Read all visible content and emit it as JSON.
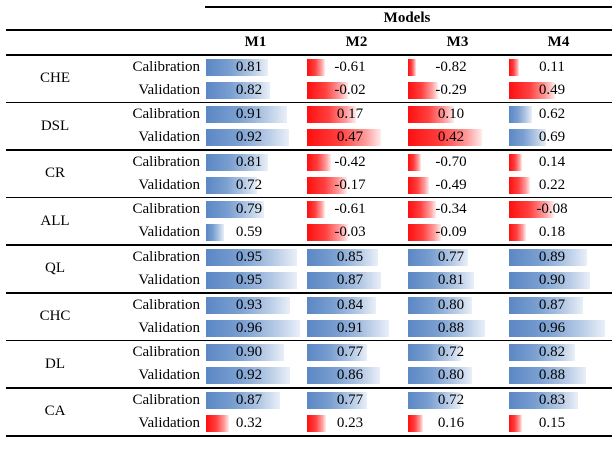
{
  "header": {
    "models_label": "Models",
    "columns": [
      "M1",
      "M2",
      "M3",
      "M4"
    ]
  },
  "colors": {
    "blue_bar": "#5b87c5",
    "red_bar": "#fe0f0f"
  },
  "groups": [
    {
      "metric": "CHE",
      "rows": [
        {
          "series": "Calibration",
          "cells": [
            {
              "v": "0.81",
              "color": "blue",
              "frac": 0.63
            },
            {
              "v": "-0.61",
              "color": "red",
              "frac": 0.18
            },
            {
              "v": "-0.82",
              "color": "red",
              "frac": 0.08
            },
            {
              "v": "0.11",
              "color": "red",
              "frac": 0.1
            }
          ]
        },
        {
          "series": "Validation",
          "cells": [
            {
              "v": "0.82",
              "color": "blue",
              "frac": 0.65
            },
            {
              "v": "-0.02",
              "color": "red",
              "frac": 0.42
            },
            {
              "v": "-0.29",
              "color": "red",
              "frac": 0.31
            },
            {
              "v": "0.49",
              "color": "red",
              "frac": 0.47
            }
          ]
        }
      ]
    },
    {
      "metric": "DSL",
      "rows": [
        {
          "series": "Calibration",
          "cells": [
            {
              "v": "0.91",
              "color": "blue",
              "frac": 0.83
            },
            {
              "v": "0.17",
              "color": "red",
              "frac": 0.5
            },
            {
              "v": "0.10",
              "color": "red",
              "frac": 0.47
            },
            {
              "v": "0.62",
              "color": "blue",
              "frac": 0.23
            }
          ]
        },
        {
          "series": "Validation",
          "cells": [
            {
              "v": "0.92",
              "color": "blue",
              "frac": 0.85
            },
            {
              "v": "0.47",
              "color": "red",
              "frac": 0.76
            },
            {
              "v": "0.42",
              "color": "red",
              "frac": 0.75
            },
            {
              "v": "0.69",
              "color": "blue",
              "frac": 0.38
            }
          ]
        }
      ]
    },
    {
      "metric": "CR",
      "rows": [
        {
          "series": "Calibration",
          "cells": [
            {
              "v": "0.81",
              "color": "blue",
              "frac": 0.63
            },
            {
              "v": "-0.42",
              "color": "red",
              "frac": 0.24
            },
            {
              "v": "-0.70",
              "color": "red",
              "frac": 0.13
            },
            {
              "v": "0.14",
              "color": "red",
              "frac": 0.13
            }
          ]
        },
        {
          "series": "Validation",
          "cells": [
            {
              "v": "0.72",
              "color": "blue",
              "frac": 0.52
            },
            {
              "v": "-0.17",
              "color": "red",
              "frac": 0.41
            },
            {
              "v": "-0.49",
              "color": "red",
              "frac": 0.21
            },
            {
              "v": "0.22",
              "color": "red",
              "frac": 0.21
            }
          ]
        }
      ]
    },
    {
      "metric": "ALL",
      "rows": [
        {
          "series": "Calibration",
          "cells": [
            {
              "v": "0.79",
              "color": "blue",
              "frac": 0.59
            },
            {
              "v": "-0.61",
              "color": "red",
              "frac": 0.18
            },
            {
              "v": "-0.34",
              "color": "red",
              "frac": 0.29
            },
            {
              "v": "-0.08",
              "color": "red",
              "frac": 0.46
            }
          ]
        },
        {
          "series": "Validation",
          "cells": [
            {
              "v": "0.59",
              "color": "blue",
              "frac": 0.18
            },
            {
              "v": "-0.03",
              "color": "red",
              "frac": 0.42
            },
            {
              "v": "-0.09",
              "color": "red",
              "frac": 0.34
            },
            {
              "v": "0.18",
              "color": "red",
              "frac": 0.17
            }
          ]
        }
      ]
    },
    {
      "metric": "QL",
      "rows": [
        {
          "series": "Calibration",
          "cells": [
            {
              "v": "0.95",
              "color": "blue",
              "frac": 0.93
            },
            {
              "v": "0.85",
              "color": "blue",
              "frac": 0.72
            },
            {
              "v": "0.77",
              "color": "blue",
              "frac": 0.61
            },
            {
              "v": "0.89",
              "color": "blue",
              "frac": 0.8
            }
          ]
        },
        {
          "series": "Validation",
          "cells": [
            {
              "v": "0.95",
              "color": "blue",
              "frac": 0.93
            },
            {
              "v": "0.87",
              "color": "blue",
              "frac": 0.75
            },
            {
              "v": "0.81",
              "color": "blue",
              "frac": 0.67
            },
            {
              "v": "0.90",
              "color": "blue",
              "frac": 0.83
            }
          ]
        }
      ]
    },
    {
      "metric": "CHC",
      "rows": [
        {
          "series": "Calibration",
          "cells": [
            {
              "v": "0.93",
              "color": "blue",
              "frac": 0.86
            },
            {
              "v": "0.84",
              "color": "blue",
              "frac": 0.7
            },
            {
              "v": "0.80",
              "color": "blue",
              "frac": 0.65
            },
            {
              "v": "0.87",
              "color": "blue",
              "frac": 0.75
            }
          ]
        },
        {
          "series": "Validation",
          "cells": [
            {
              "v": "0.96",
              "color": "blue",
              "frac": 0.96
            },
            {
              "v": "0.91",
              "color": "blue",
              "frac": 0.84
            },
            {
              "v": "0.88",
              "color": "blue",
              "frac": 0.79
            },
            {
              "v": "0.96",
              "color": "blue",
              "frac": 0.98
            }
          ]
        }
      ]
    },
    {
      "metric": "DL",
      "rows": [
        {
          "series": "Calibration",
          "cells": [
            {
              "v": "0.90",
              "color": "blue",
              "frac": 0.8
            },
            {
              "v": "0.77",
              "color": "blue",
              "frac": 0.61
            },
            {
              "v": "0.72",
              "color": "blue",
              "frac": 0.54
            },
            {
              "v": "0.82",
              "color": "blue",
              "frac": 0.67
            }
          ]
        },
        {
          "series": "Validation",
          "cells": [
            {
              "v": "0.92",
              "color": "blue",
              "frac": 0.86
            },
            {
              "v": "0.86",
              "color": "blue",
              "frac": 0.74
            },
            {
              "v": "0.80",
              "color": "blue",
              "frac": 0.65
            },
            {
              "v": "0.88",
              "color": "blue",
              "frac": 0.79
            }
          ]
        }
      ]
    },
    {
      "metric": "CA",
      "rows": [
        {
          "series": "Calibration",
          "cells": [
            {
              "v": "0.87",
              "color": "blue",
              "frac": 0.75
            },
            {
              "v": "0.77",
              "color": "blue",
              "frac": 0.61
            },
            {
              "v": "0.72",
              "color": "blue",
              "frac": 0.54
            },
            {
              "v": "0.83",
              "color": "blue",
              "frac": 0.7
            }
          ]
        },
        {
          "series": "Validation",
          "cells": [
            {
              "v": "0.32",
              "color": "red",
              "frac": 0.23
            },
            {
              "v": "0.23",
              "color": "red",
              "frac": 0.19
            },
            {
              "v": "0.16",
              "color": "red",
              "frac": 0.15
            },
            {
              "v": "0.15",
              "color": "red",
              "frac": 0.13
            }
          ]
        }
      ]
    }
  ],
  "chart_data": {
    "type": "table",
    "title": "Models",
    "columns": [
      "M1",
      "M2",
      "M3",
      "M4"
    ],
    "rows": [
      {
        "group": "CHE",
        "series": "Calibration",
        "values": [
          0.81,
          -0.61,
          -0.82,
          0.11
        ]
      },
      {
        "group": "CHE",
        "series": "Validation",
        "values": [
          0.82,
          -0.02,
          -0.29,
          0.49
        ]
      },
      {
        "group": "DSL",
        "series": "Calibration",
        "values": [
          0.91,
          0.17,
          0.1,
          0.62
        ]
      },
      {
        "group": "DSL",
        "series": "Validation",
        "values": [
          0.92,
          0.47,
          0.42,
          0.69
        ]
      },
      {
        "group": "CR",
        "series": "Calibration",
        "values": [
          0.81,
          -0.42,
          -0.7,
          0.14
        ]
      },
      {
        "group": "CR",
        "series": "Validation",
        "values": [
          0.72,
          -0.17,
          -0.49,
          0.22
        ]
      },
      {
        "group": "ALL",
        "series": "Calibration",
        "values": [
          0.79,
          -0.61,
          -0.34,
          -0.08
        ]
      },
      {
        "group": "ALL",
        "series": "Validation",
        "values": [
          0.59,
          -0.03,
          -0.09,
          0.18
        ]
      },
      {
        "group": "QL",
        "series": "Calibration",
        "values": [
          0.95,
          0.85,
          0.77,
          0.89
        ]
      },
      {
        "group": "QL",
        "series": "Validation",
        "values": [
          0.95,
          0.87,
          0.81,
          0.9
        ]
      },
      {
        "group": "CHC",
        "series": "Calibration",
        "values": [
          0.93,
          0.84,
          0.8,
          0.87
        ]
      },
      {
        "group": "CHC",
        "series": "Validation",
        "values": [
          0.96,
          0.91,
          0.88,
          0.96
        ]
      },
      {
        "group": "DL",
        "series": "Calibration",
        "values": [
          0.9,
          0.77,
          0.72,
          0.82
        ]
      },
      {
        "group": "DL",
        "series": "Validation",
        "values": [
          0.92,
          0.86,
          0.8,
          0.88
        ]
      },
      {
        "group": "CA",
        "series": "Calibration",
        "values": [
          0.87,
          0.77,
          0.72,
          0.83
        ]
      },
      {
        "group": "CA",
        "series": "Validation",
        "values": [
          0.32,
          0.23,
          0.16,
          0.15
        ]
      }
    ],
    "legend": "blue bar = high performance score, red bar = low/negative performance score; bar length encodes score"
  }
}
